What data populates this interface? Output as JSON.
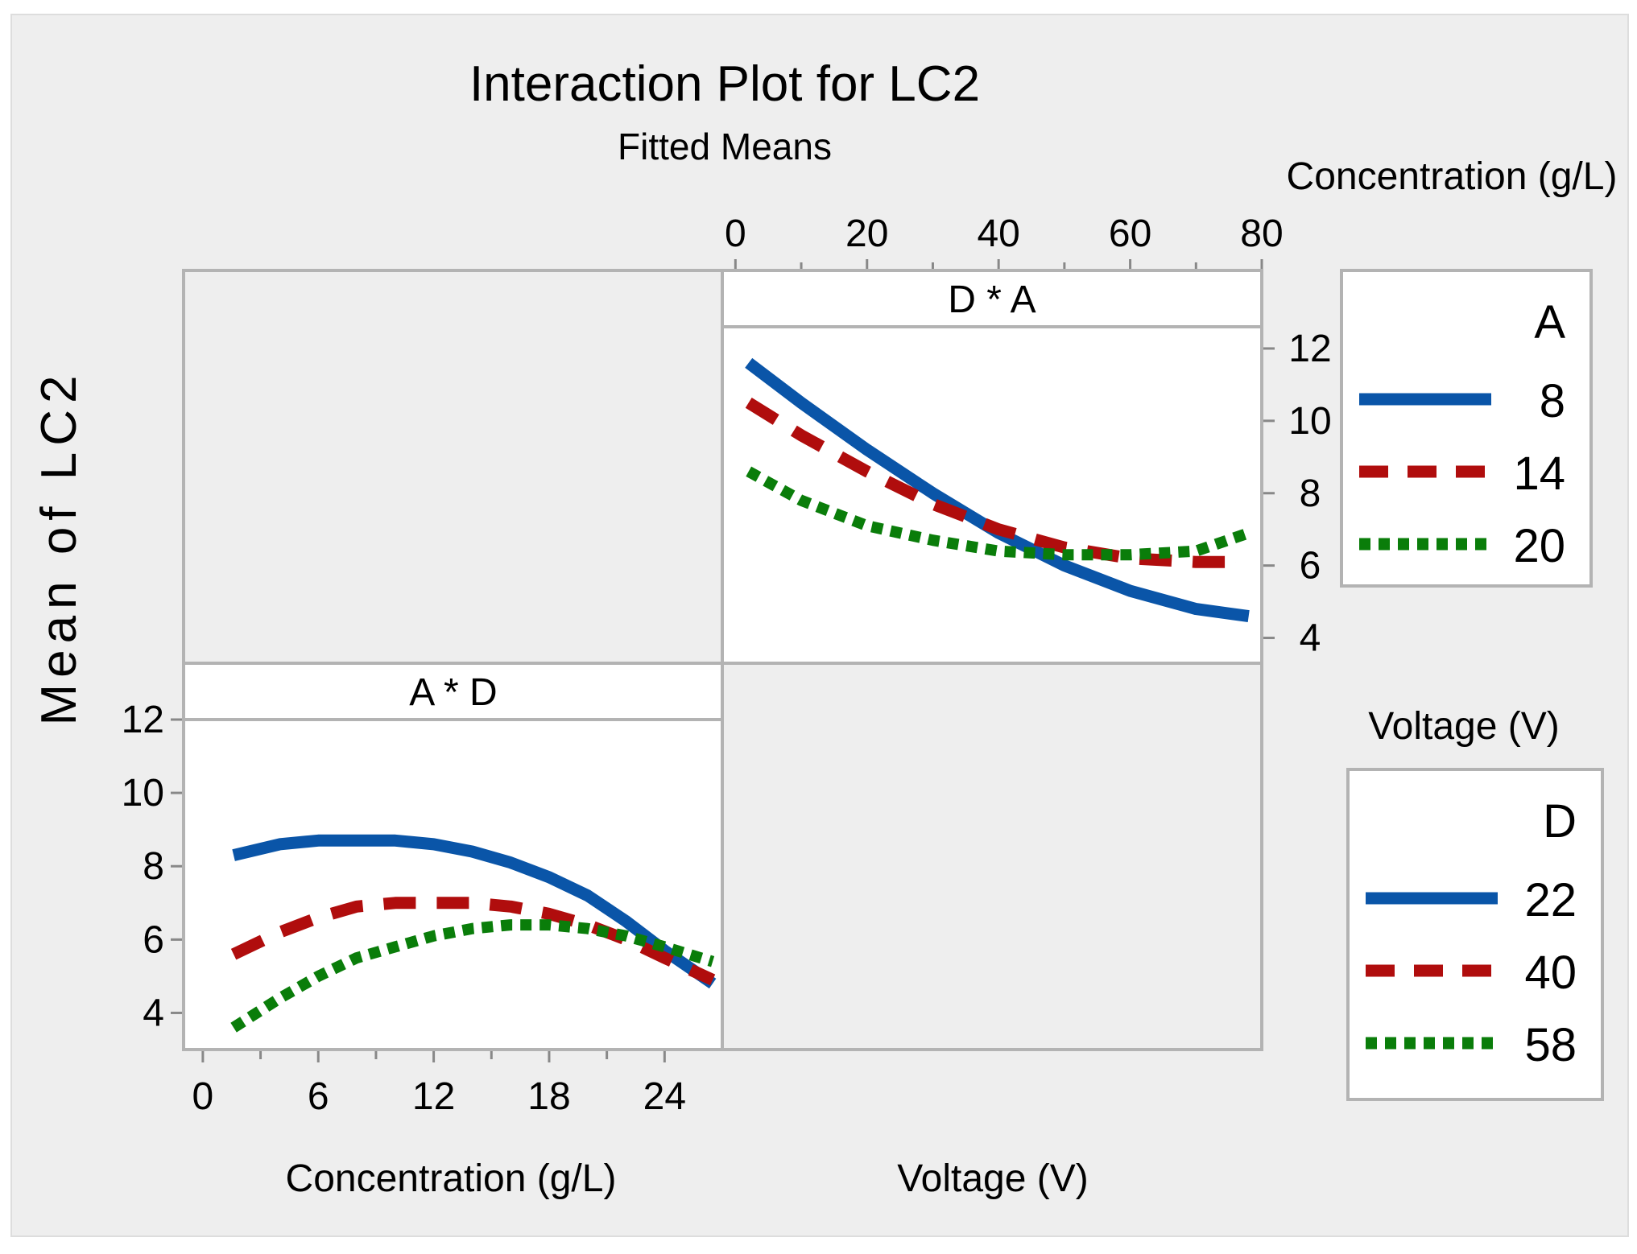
{
  "chart_data": {
    "type": "line",
    "title": "Interaction Plot for LC2",
    "subtitle": "Fitted Means",
    "ylabel": "Mean of LC2",
    "colors": {
      "background": "#eeeeee",
      "panel": "#ffffff",
      "frame": "#b3b3b3",
      "blue": "#0a55a8",
      "red": "#b00d0d",
      "green": "#0a7d0a"
    },
    "top_axis_label": "Concentration (g/L)",
    "bottom_labels": {
      "left": "Concentration (g/L)",
      "right": "Voltage (V)"
    },
    "right_axis_label": "Voltage (V)",
    "panels": [
      {
        "id": "D_x_A",
        "strip": "D * A",
        "xlim": [
          -2,
          80
        ],
        "ylim": [
          3.3,
          12.6
        ],
        "xticks": [
          0,
          20,
          40,
          60,
          80
        ],
        "yticks": [
          4,
          6,
          8,
          10,
          12
        ],
        "series": [
          {
            "name": "8",
            "style": "solid",
            "color": "#0a55a8",
            "x": [
              2,
              10,
              20,
              30,
              40,
              50,
              60,
              70,
              78
            ],
            "y": [
              11.6,
              10.5,
              9.2,
              8.0,
              6.9,
              6.0,
              5.3,
              4.8,
              4.6
            ]
          },
          {
            "name": "14",
            "style": "dash",
            "color": "#b00d0d",
            "x": [
              2,
              10,
              20,
              30,
              40,
              50,
              60,
              70,
              76
            ],
            "y": [
              10.5,
              9.6,
              8.6,
              7.7,
              7.0,
              6.5,
              6.2,
              6.1,
              6.1
            ]
          },
          {
            "name": "20",
            "style": "dot",
            "color": "#0a7d0a",
            "x": [
              2,
              10,
              20,
              30,
              40,
              50,
              60,
              70,
              78
            ],
            "y": [
              8.6,
              7.8,
              7.1,
              6.7,
              6.4,
              6.3,
              6.3,
              6.4,
              6.9
            ]
          }
        ]
      },
      {
        "id": "A_x_D",
        "strip": "A * D",
        "xlim": [
          -1,
          27
        ],
        "ylim": [
          3.0,
          12.0
        ],
        "xticks": [
          0,
          6,
          12,
          18,
          24
        ],
        "yticks": [
          4,
          6,
          8,
          10,
          12
        ],
        "series": [
          {
            "name": "22",
            "style": "solid",
            "color": "#0a55a8",
            "x": [
              1.6,
              4,
              6,
              8,
              10,
              12,
              14,
              16,
              18,
              20,
              22,
              24,
              26.5
            ],
            "y": [
              8.3,
              8.6,
              8.7,
              8.7,
              8.7,
              8.6,
              8.4,
              8.1,
              7.7,
              7.2,
              6.5,
              5.7,
              4.8
            ]
          },
          {
            "name": "40",
            "style": "dash",
            "color": "#b00d0d",
            "x": [
              1.6,
              4,
              6,
              8,
              10,
              12,
              14,
              16,
              18,
              20,
              22,
              24,
              26.5
            ],
            "y": [
              5.6,
              6.2,
              6.6,
              6.9,
              7.0,
              7.0,
              7.0,
              6.9,
              6.7,
              6.4,
              6.0,
              5.5,
              4.9
            ]
          },
          {
            "name": "58",
            "style": "dot",
            "color": "#0a7d0a",
            "x": [
              1.6,
              4,
              6,
              8,
              10,
              12,
              14,
              16,
              18,
              20,
              22,
              24,
              26.5
            ],
            "y": [
              3.6,
              4.4,
              5.0,
              5.5,
              5.8,
              6.1,
              6.3,
              6.4,
              6.4,
              6.3,
              6.1,
              5.8,
              5.4
            ]
          }
        ]
      }
    ],
    "legends": [
      {
        "id": "legend-A",
        "header": "A",
        "entries": [
          {
            "label": "8",
            "style": "solid",
            "color": "#0a55a8"
          },
          {
            "label": "14",
            "style": "dash",
            "color": "#b00d0d"
          },
          {
            "label": "20",
            "style": "dot",
            "color": "#0a7d0a"
          }
        ]
      },
      {
        "id": "legend-D",
        "header": "D",
        "entries": [
          {
            "label": "22",
            "style": "solid",
            "color": "#0a55a8"
          },
          {
            "label": "40",
            "style": "dash",
            "color": "#b00d0d"
          },
          {
            "label": "58",
            "style": "dot",
            "color": "#0a7d0a"
          }
        ]
      }
    ]
  }
}
